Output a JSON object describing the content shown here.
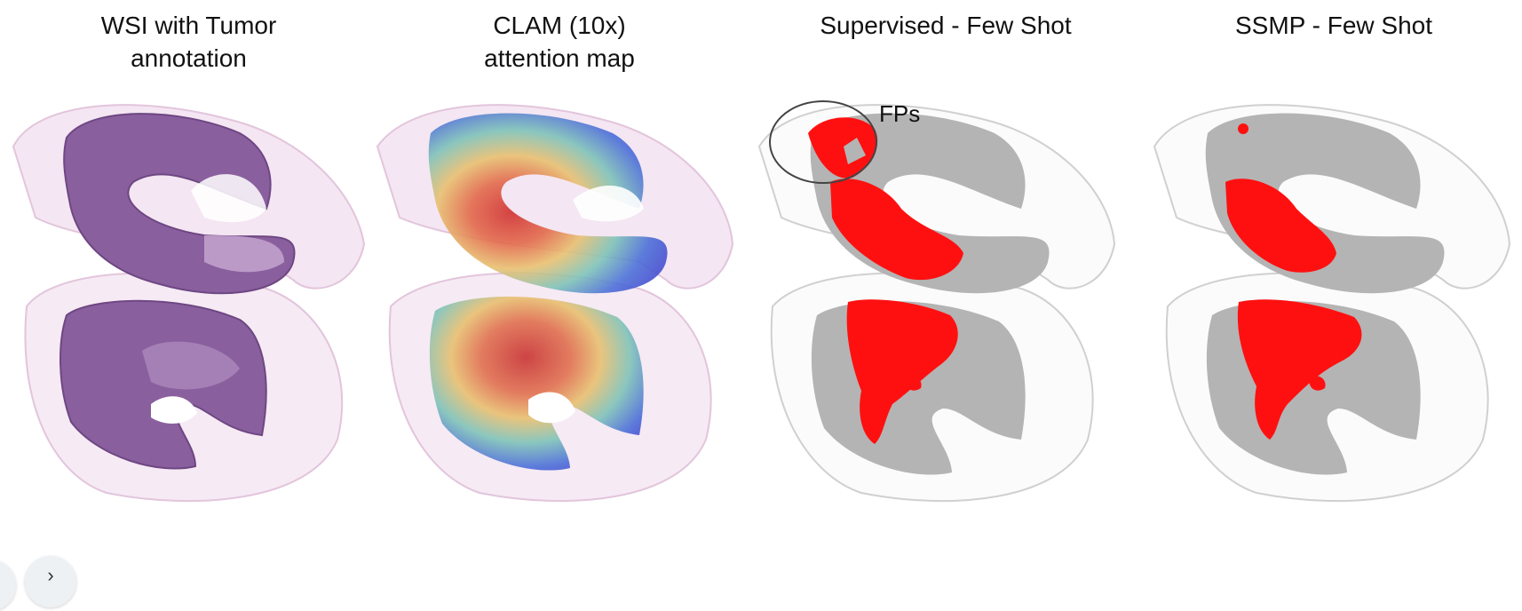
{
  "panels": [
    {
      "title_line1": "WSI with Tumor",
      "title_line2": "annotation"
    },
    {
      "title_line1": "CLAM (10x)",
      "title_line2": "attention map"
    },
    {
      "title_line1": "Supervised - Few Shot",
      "title_line2": ""
    },
    {
      "title_line1": "SSMP - Few Shot",
      "title_line2": ""
    }
  ],
  "annotation": {
    "label": "FPs"
  },
  "nav": {
    "next_glyph": "›"
  },
  "colors": {
    "he_dark": "#8a5f9e",
    "he_light": "#d8c0e0",
    "mask_gray": "#b4b4b4",
    "tumor_red": "#ff1010"
  }
}
